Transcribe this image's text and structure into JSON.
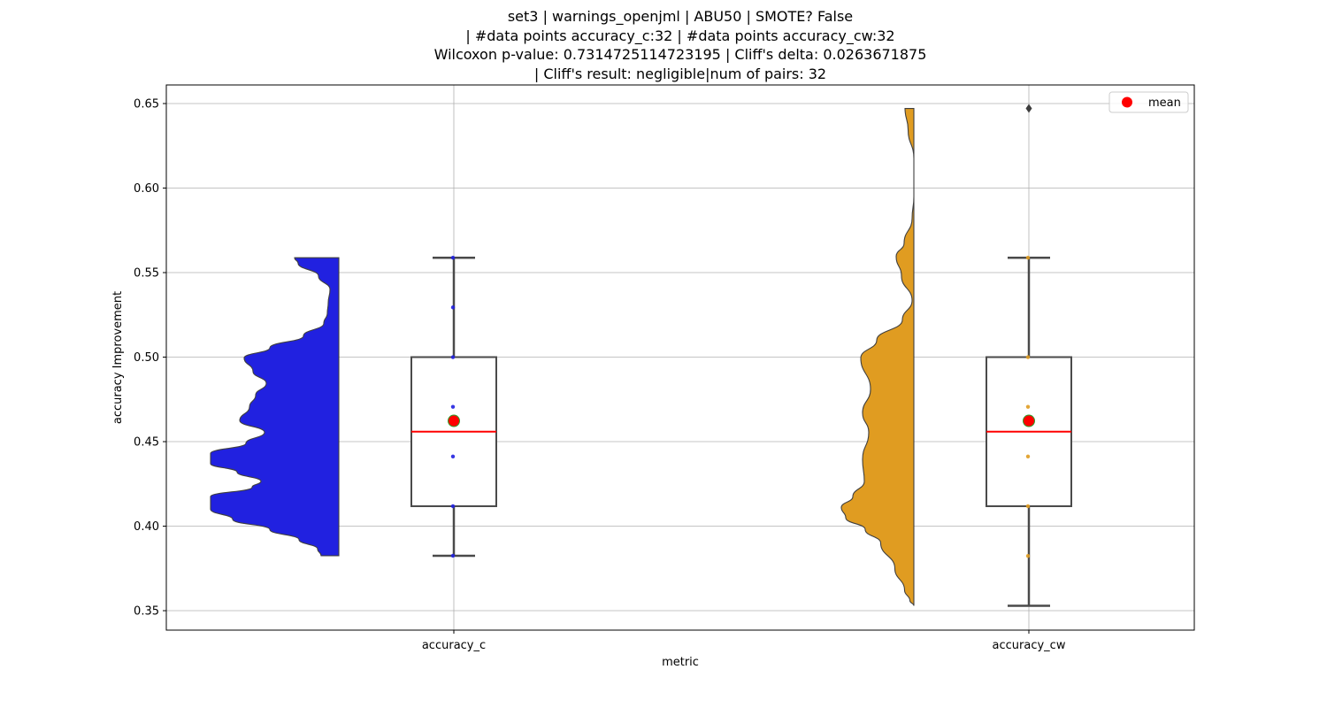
{
  "chart_data": {
    "type": "violin-box",
    "title_lines": [
      "set3 | warnings_openjml | ABU50 | SMOTE? False",
      "| #data points accuracy_c:32 | #data points accuracy_cw:32",
      "Wilcoxon p-value: 0.7314725114723195 | Cliff's delta: 0.0263671875",
      "| Cliff's result: negligible|num of pairs: 32"
    ],
    "xlabel": "metric",
    "ylabel": "accuracy Improvement",
    "ylim": [
      0.3385,
      0.661
    ],
    "yticks": [
      "0.35",
      "0.40",
      "0.45",
      "0.50",
      "0.55",
      "0.60",
      "0.65"
    ],
    "grid": true,
    "legend": {
      "position": "top-right",
      "label": "mean"
    },
    "categories": [
      "accuracy_c",
      "accuracy_cw"
    ],
    "series": [
      {
        "category": "accuracy_c",
        "color": "#2121e0",
        "min": 0.3825,
        "q1": 0.4118,
        "median": 0.4559,
        "q3": 0.5,
        "max": 0.5588,
        "mean": 0.4623,
        "outliers": [],
        "points": [
          0.3825,
          0.4118,
          0.4412,
          0.4706,
          0.5,
          0.5294,
          0.5588
        ],
        "density": [
          {
            "y": 0.3825,
            "w": 0.2
          },
          {
            "y": 0.3865,
            "w": 0.24
          },
          {
            "y": 0.392,
            "w": 0.45
          },
          {
            "y": 0.398,
            "w": 0.78
          },
          {
            "y": 0.404,
            "w": 1.2
          },
          {
            "y": 0.41,
            "w": 1.45
          },
          {
            "y": 0.4175,
            "w": 1.45
          },
          {
            "y": 0.423,
            "w": 0.98
          },
          {
            "y": 0.4265,
            "w": 0.88
          },
          {
            "y": 0.432,
            "w": 1.15
          },
          {
            "y": 0.437,
            "w": 1.45
          },
          {
            "y": 0.443,
            "w": 1.45
          },
          {
            "y": 0.449,
            "w": 1.05
          },
          {
            "y": 0.4555,
            "w": 0.84
          },
          {
            "y": 0.4625,
            "w": 1.12
          },
          {
            "y": 0.4705,
            "w": 1.01
          },
          {
            "y": 0.4775,
            "w": 0.94
          },
          {
            "y": 0.4845,
            "w": 0.82
          },
          {
            "y": 0.4915,
            "w": 0.97
          },
          {
            "y": 0.4995,
            "w": 1.07
          },
          {
            "y": 0.5055,
            "w": 0.78
          },
          {
            "y": 0.5125,
            "w": 0.4
          },
          {
            "y": 0.52,
            "w": 0.17
          },
          {
            "y": 0.526,
            "w": 0.13
          },
          {
            "y": 0.532,
            "w": 0.12
          },
          {
            "y": 0.54,
            "w": 0.1
          },
          {
            "y": 0.548,
            "w": 0.23
          },
          {
            "y": 0.5555,
            "w": 0.46
          },
          {
            "y": 0.5588,
            "w": 0.5
          }
        ]
      },
      {
        "category": "accuracy_cw",
        "color": "#e09c21",
        "min": 0.3529,
        "q1": 0.4118,
        "median": 0.4559,
        "q3": 0.5,
        "max": 0.5588,
        "mean": 0.4623,
        "outliers": [
          0.6471
        ],
        "points": [
          0.3824,
          0.4118,
          0.4412,
          0.4706,
          0.5,
          0.5588
        ],
        "density": [
          {
            "y": 0.3529,
            "w": 0.0
          },
          {
            "y": 0.356,
            "w": 0.045
          },
          {
            "y": 0.362,
            "w": 0.105
          },
          {
            "y": 0.375,
            "w": 0.215
          },
          {
            "y": 0.39,
            "w": 0.375
          },
          {
            "y": 0.398,
            "w": 0.55
          },
          {
            "y": 0.405,
            "w": 0.77
          },
          {
            "y": 0.411,
            "w": 0.82
          },
          {
            "y": 0.4175,
            "w": 0.69
          },
          {
            "y": 0.4265,
            "w": 0.56
          },
          {
            "y": 0.4395,
            "w": 0.58
          },
          {
            "y": 0.4555,
            "w": 0.51
          },
          {
            "y": 0.467,
            "w": 0.58
          },
          {
            "y": 0.481,
            "w": 0.49
          },
          {
            "y": 0.4995,
            "w": 0.6
          },
          {
            "y": 0.51,
            "w": 0.42
          },
          {
            "y": 0.522,
            "w": 0.13
          },
          {
            "y": 0.5335,
            "w": 0.02
          },
          {
            "y": 0.548,
            "w": 0.14
          },
          {
            "y": 0.5595,
            "w": 0.2
          },
          {
            "y": 0.5675,
            "w": 0.11
          },
          {
            "y": 0.582,
            "w": 0.02
          },
          {
            "y": 0.595,
            "w": 0.0
          },
          {
            "y": 0.6175,
            "w": 0.0
          },
          {
            "y": 0.6345,
            "w": 0.065
          },
          {
            "y": 0.6471,
            "w": 0.1
          }
        ]
      }
    ]
  }
}
